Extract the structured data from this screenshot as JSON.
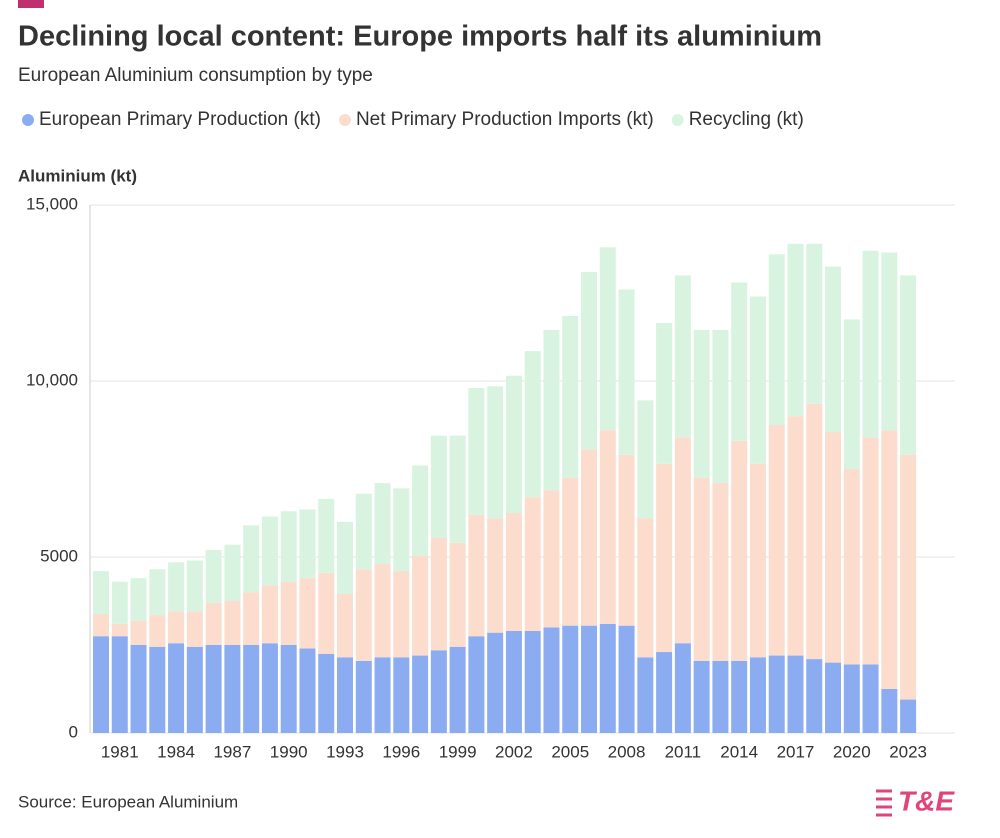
{
  "chart_data": {
    "type": "stacked_bar",
    "title": "Declining local content: Europe imports half its aluminium",
    "subtitle": "European Aluminium consumption by type",
    "y_label": "Aluminium (kt)",
    "source": "Source: European Aluminium",
    "logo": "T&E",
    "categories": [
      null,
      "1981",
      null,
      null,
      "1984",
      null,
      null,
      "1987",
      null,
      null,
      "1990",
      null,
      null,
      "1993",
      null,
      null,
      "1996",
      null,
      null,
      "1999",
      null,
      null,
      "2002",
      null,
      null,
      "2005",
      null,
      null,
      "2008",
      null,
      null,
      "2011",
      null,
      null,
      "2014",
      null,
      null,
      "2017",
      null,
      null,
      "2020",
      null,
      null,
      "2023"
    ],
    "series": [
      {
        "name": "European Primary Production (kt)",
        "color": "#8cacf2",
        "values": [
          2750,
          2750,
          2500,
          2450,
          2550,
          2450,
          2500,
          2500,
          2500,
          2550,
          2500,
          2400,
          2250,
          2150,
          2050,
          2150,
          2150,
          2200,
          2350,
          2450,
          2750,
          2850,
          2900,
          2900,
          3000,
          3050,
          3050,
          3100,
          3050,
          2150,
          2300,
          2550,
          2050,
          2050,
          2050,
          2150,
          2200,
          2200,
          2100,
          2000,
          1950,
          1950,
          1250,
          950
        ]
      },
      {
        "name": "Net Primary Production Imports (kt)",
        "color": "#fcdccd",
        "values": [
          630,
          350,
          700,
          900,
          900,
          1000,
          1200,
          1250,
          1500,
          1650,
          1800,
          2000,
          2300,
          1800,
          2600,
          2650,
          2450,
          2850,
          3200,
          2950,
          3450,
          3250,
          3350,
          3800,
          3900,
          4200,
          5000,
          5500,
          4850,
          3950,
          5350,
          5850,
          5200,
          5050,
          6250,
          5500,
          6550,
          6800,
          7250,
          6550,
          5550,
          6450,
          7350,
          6950
        ]
      },
      {
        "name": "Recycling (kt)",
        "color": "#d9f3e1",
        "values": [
          1220,
          1200,
          1200,
          1300,
          1400,
          1450,
          1500,
          1600,
          1900,
          1950,
          2000,
          1950,
          2100,
          2050,
          2150,
          2300,
          2350,
          2550,
          2900,
          3050,
          3600,
          3750,
          3900,
          4150,
          4550,
          4600,
          5050,
          5200,
          4700,
          3350,
          4000,
          4600,
          4200,
          4350,
          4500,
          4750,
          4850,
          4900,
          4550,
          4700,
          4250,
          5300,
          5050,
          5100
        ]
      }
    ],
    "ylim": [
      0,
      15000
    ],
    "yticks": [
      0,
      5000,
      {
        "value": 10000,
        "label": "10,000"
      },
      {
        "value": 15000,
        "label": "15,000"
      }
    ],
    "grid": true
  }
}
